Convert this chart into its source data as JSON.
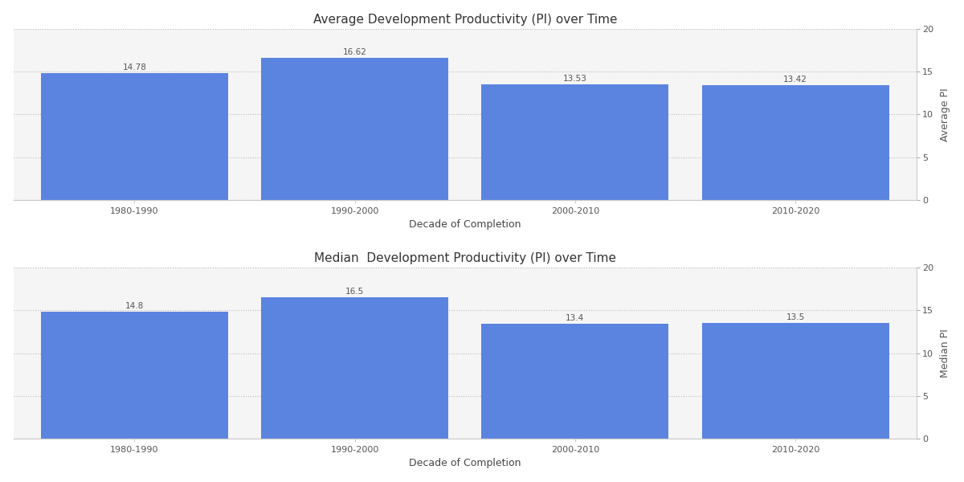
{
  "categories": [
    "1980-1990",
    "1990-2000",
    "2000-2010",
    "2010-2020"
  ],
  "avg_values": [
    14.78,
    16.62,
    13.53,
    13.42
  ],
  "med_values": [
    14.8,
    16.5,
    13.4,
    13.5
  ],
  "bar_color": "#5B84E0",
  "avg_title": "Average Development Productivity (PI) over Time",
  "med_title": "Median  Development Productivity (PI) over Time",
  "xlabel": "Decade of Completion",
  "avg_ylabel": "Average PI",
  "med_ylabel": "Median PI",
  "ylim": [
    0,
    20
  ],
  "yticks": [
    0,
    5,
    10,
    15,
    20
  ],
  "bg_color": "#F5F5F5",
  "title_fontsize": 11,
  "label_fontsize": 9,
  "tick_fontsize": 8,
  "bar_label_fontsize": 7.5,
  "bar_label_color": "#555555",
  "bar_width": 0.85,
  "x_positions": [
    0,
    1,
    2,
    3
  ],
  "xlim": [
    -0.55,
    3.55
  ]
}
